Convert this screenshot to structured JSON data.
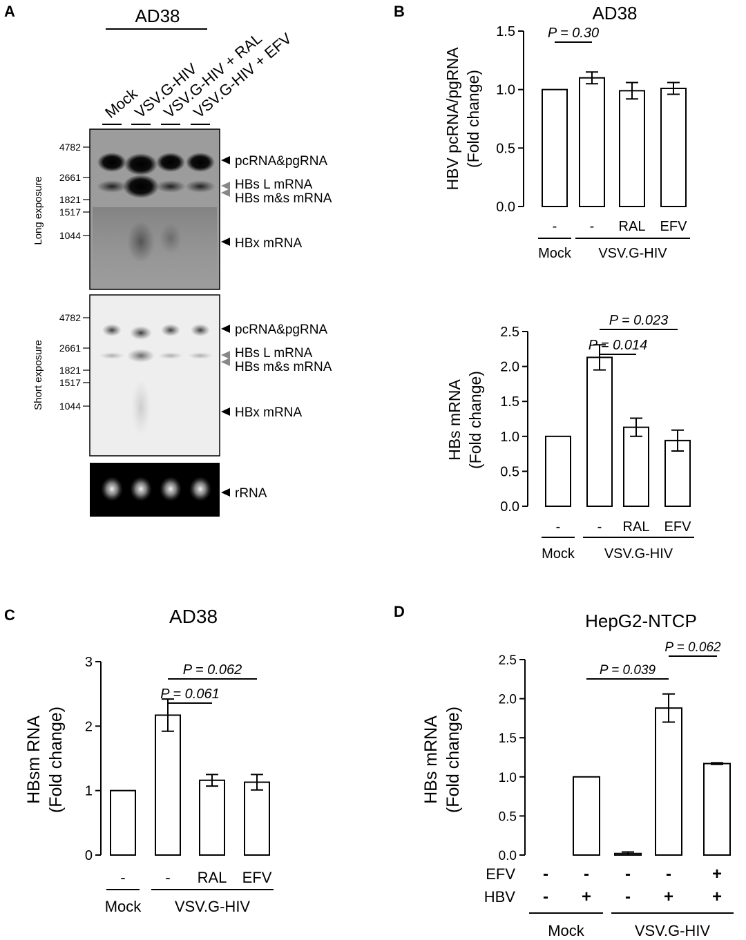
{
  "panel_labels": {
    "A": "A",
    "B": "B",
    "C": "C",
    "D": "D"
  },
  "blot": {
    "title": "AD38",
    "lanes": [
      "Mock",
      "VSV.G-HIV",
      "VSV.G-HIV + RAL",
      "VSV.G-HIV + EFV"
    ],
    "long_exposure_label": "Long exposure",
    "short_exposure_label": "Short exposure",
    "size_markers": [
      "4782",
      "2661",
      "1821",
      "1517",
      "1044"
    ],
    "band_labels": [
      "pcRNA&pgRNA",
      "HBs L mRNA",
      "HBs m&s mRNA",
      "HBx mRNA"
    ],
    "rrna_label": "rRNA"
  },
  "chart_data": [
    {
      "panel": "B (top)",
      "type": "bar",
      "title": "AD38",
      "ylabel": [
        "HBV pcRNA/pgRNA",
        "(Fold change)"
      ],
      "categories": [
        "-",
        "-",
        "RAL",
        "EFV"
      ],
      "groups": [
        {
          "label": "Mock",
          "span": [
            0,
            0
          ]
        },
        {
          "label": "VSV.G-HIV",
          "span": [
            1,
            3
          ]
        }
      ],
      "values": [
        1.0,
        1.1,
        0.99,
        1.01
      ],
      "errors": [
        0,
        0.05,
        0.07,
        0.05
      ],
      "ylim": [
        0,
        1.5
      ],
      "yticks": [
        "0.0",
        "0.5",
        "1.0",
        "1.5"
      ],
      "pvalues": [
        {
          "text": "P = 0.30",
          "from": 0,
          "to": 1
        }
      ]
    },
    {
      "panel": "B (bottom)",
      "type": "bar",
      "title": "",
      "ylabel": [
        "HBs mRNA",
        "(Fold change)"
      ],
      "categories": [
        "-",
        "-",
        "RAL",
        "EFV"
      ],
      "groups": [
        {
          "label": "Mock",
          "span": [
            0,
            0
          ]
        },
        {
          "label": "VSV.G-HIV",
          "span": [
            1,
            3
          ]
        }
      ],
      "values": [
        1.0,
        2.13,
        1.13,
        0.94
      ],
      "errors": [
        0,
        0.18,
        0.13,
        0.15
      ],
      "ylim": [
        0,
        2.5
      ],
      "yticks": [
        "0.0",
        "0.5",
        "1.0",
        "1.5",
        "2.0",
        "2.5"
      ],
      "pvalues": [
        {
          "text": "P = 0.014",
          "from": 1,
          "to": 2
        },
        {
          "text": "P = 0.023",
          "from": 1,
          "to": 3
        }
      ]
    },
    {
      "panel": "C",
      "type": "bar",
      "title": "AD38",
      "ylabel": [
        "HBsm RNA",
        "(Fold change)"
      ],
      "categories": [
        "-",
        "-",
        "RAL",
        "EFV"
      ],
      "groups": [
        {
          "label": "Mock",
          "span": [
            0,
            0
          ]
        },
        {
          "label": "VSV.G-HIV",
          "span": [
            1,
            3
          ]
        }
      ],
      "values": [
        1.0,
        2.17,
        1.16,
        1.13
      ],
      "errors": [
        0,
        0.25,
        0.09,
        0.12
      ],
      "ylim": [
        0,
        3
      ],
      "yticks": [
        "0",
        "1",
        "2",
        "3"
      ],
      "pvalues": [
        {
          "text": "P = 0.061",
          "from": 1,
          "to": 2
        },
        {
          "text": "P = 0.062",
          "from": 1,
          "to": 3
        }
      ]
    },
    {
      "panel": "D",
      "type": "bar",
      "title": "HepG2-NTCP",
      "ylabel": [
        "HBs mRNA",
        "(Fold change)"
      ],
      "row_labels": [
        "EFV",
        "HBV"
      ],
      "rows": [
        [
          "-",
          "-",
          "-",
          "-",
          "+"
        ],
        [
          "-",
          "+",
          "-",
          "+",
          "+"
        ]
      ],
      "groups": [
        {
          "label": "Mock",
          "span": [
            0,
            1
          ]
        },
        {
          "label": "VSV.G-HIV",
          "span": [
            2,
            4
          ]
        }
      ],
      "values": [
        0,
        1.0,
        0.02,
        1.88,
        1.17
      ],
      "errors": [
        0,
        0,
        0.02,
        0.18,
        0.01
      ],
      "ylim": [
        0,
        2.5
      ],
      "yticks": [
        "0.0",
        "0.5",
        "1.0",
        "1.5",
        "2.0",
        "2.5"
      ],
      "pvalues": [
        {
          "text": "P = 0.039",
          "from": 1,
          "to": 3
        },
        {
          "text": "P = 0.062",
          "from": 3,
          "to": 4
        }
      ]
    }
  ]
}
